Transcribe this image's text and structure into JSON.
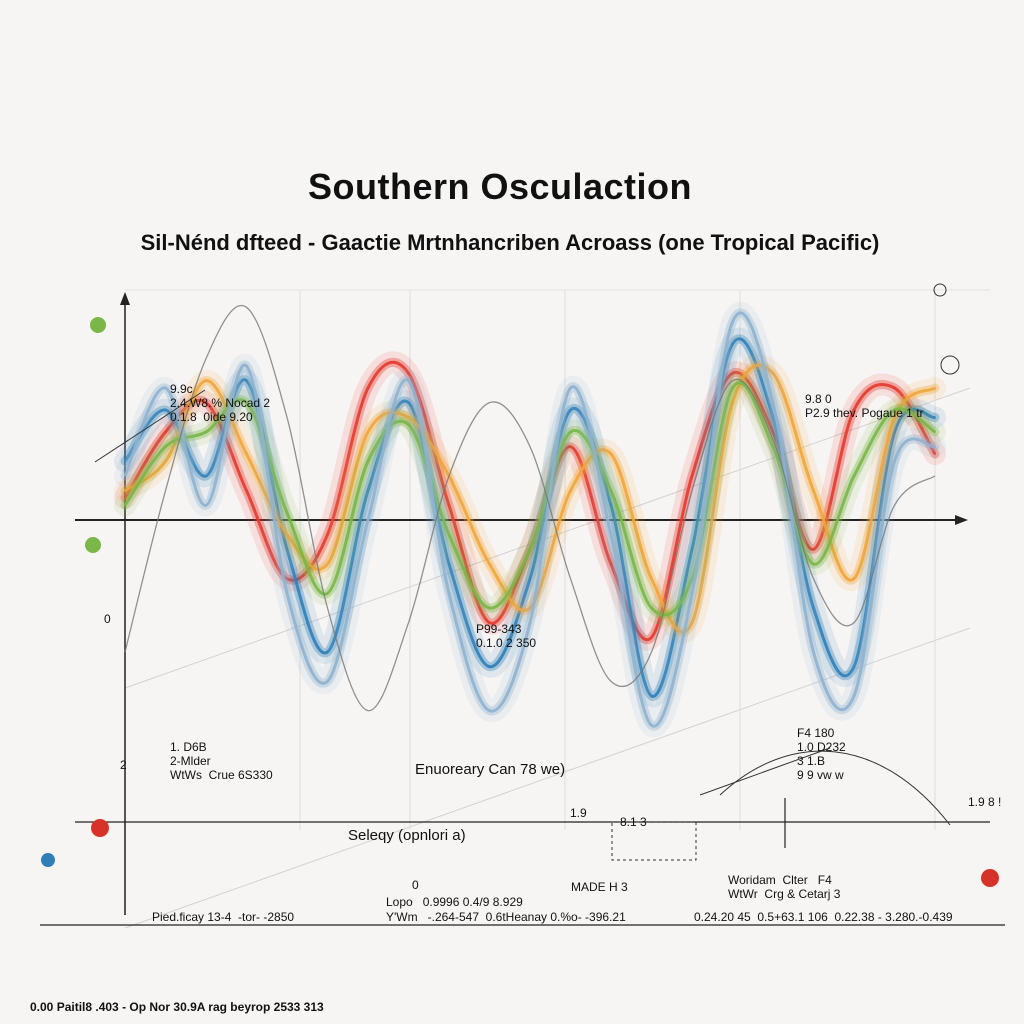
{
  "title": "Southern Osculaction",
  "subtitle": "Sil-Nénd dfteed - Gaactie Mrtnhancriben Acroass (one Tropical Pacific)",
  "annotations": {
    "top_left": "9.9c\n2.4.W8.% Nocad 2\n0.1.8  0ide 9.20",
    "top_right": "9.8 0\nP2.9 thev. Pogaue 1 tr",
    "center_low": "P99-343\n0.1.0 2 350",
    "lower_left": "1. D6B\n2-Mlder\nWtWs  Crue 6S330",
    "lower_center": "Enuoreary Can 78 we)",
    "lower_right": "F4 180\n1.0 D232\n3 1.B\n9 9 vw w",
    "legend_label": "Seleqy (opnlori a)",
    "inset_label": "8.1 3",
    "side_num_top_right": "1.9 8 !",
    "side_num_left": "1.9",
    "mid_tag": "MADE H 3",
    "lower_right_2": "Woridam  Clter   F4\nWtWr  Crg & Cetarj 3",
    "zero_mark": "0",
    "stat_a": "Lopo   0.9996 0.4/9 8.929",
    "stat_b": "Y'Wm   -.264-547  0.6tHeanay 0.%o- -396.21",
    "stat_c": "0.24.20 45  0.5+63.1 106  0.22.38 - 3.280.-0.439",
    "stat_left": "Pied.ficay 13-4  -tor- -2850",
    "footnote": "0.00  Paitil8 .403  - Op Nor 30.9A rag beyrop 2533 313",
    "left_tick_top": "2",
    "left_tick_mid": "0"
  },
  "chart_data": {
    "type": "line",
    "title": "Southern Osculaction",
    "subtitle": "Sil-Nénd dfteed - Gaactie Mrtnhancriben Acroass (one Tropical Pacific)",
    "xlabel": "",
    "ylabel": "",
    "x_range": [
      0,
      100
    ],
    "ylim": [
      -3,
      3
    ],
    "grid": true,
    "series": [
      {
        "color": "#e63a2e",
        "x": [
          0,
          5,
          10,
          15,
          20,
          25,
          30,
          35,
          40,
          45,
          50,
          55,
          60,
          65,
          70,
          75,
          80,
          85,
          90,
          95,
          100
        ],
        "values": [
          0.3,
          1.2,
          1.6,
          0.4,
          -0.8,
          -0.2,
          1.8,
          2.0,
          0.2,
          -1.4,
          -0.4,
          1.0,
          -0.6,
          -1.6,
          0.6,
          2.0,
          1.2,
          -0.4,
          1.5,
          1.8,
          0.9
        ]
      },
      {
        "color": "#2e7fb8",
        "x": [
          0,
          5,
          10,
          15,
          20,
          25,
          30,
          35,
          40,
          45,
          50,
          55,
          60,
          65,
          70,
          75,
          80,
          85,
          90,
          95,
          100
        ],
        "values": [
          0.8,
          1.5,
          0.6,
          1.9,
          -0.4,
          -1.8,
          0.4,
          1.6,
          -0.6,
          -2.0,
          -0.8,
          1.5,
          0.2,
          -2.4,
          -0.4,
          2.4,
          1.4,
          -1.2,
          -2.0,
          1.2,
          1.4
        ]
      },
      {
        "color": "#f2a53a",
        "x": [
          0,
          5,
          10,
          15,
          20,
          25,
          30,
          35,
          40,
          45,
          50,
          55,
          60,
          65,
          70,
          75,
          80,
          85,
          90,
          95,
          100
        ],
        "values": [
          0.4,
          0.8,
          1.9,
          0.9,
          -0.2,
          -0.6,
          1.2,
          1.4,
          0.6,
          -0.6,
          -1.2,
          0.4,
          0.9,
          -0.8,
          -1.4,
          1.6,
          2.0,
          0.4,
          -0.8,
          1.4,
          1.8
        ]
      },
      {
        "color": "#7ab648",
        "x": [
          0,
          5,
          10,
          15,
          20,
          25,
          30,
          35,
          40,
          45,
          50,
          55,
          60,
          65,
          70,
          75,
          80,
          85,
          90,
          95,
          100
        ],
        "values": [
          0.2,
          1.0,
          1.2,
          1.6,
          0.1,
          -1.0,
          0.8,
          1.3,
          -0.2,
          -1.2,
          -0.4,
          1.2,
          0.4,
          -1.2,
          -0.8,
          1.8,
          1.0,
          -0.6,
          0.6,
          1.5,
          1.2
        ]
      },
      {
        "color": "#8fb3cf",
        "x": [
          0,
          5,
          10,
          15,
          20,
          25,
          30,
          35,
          40,
          45,
          50,
          55,
          60,
          65,
          70,
          75,
          80,
          85,
          90,
          95,
          100
        ],
        "values": [
          0.6,
          1.8,
          0.2,
          2.1,
          -1.0,
          -2.2,
          0.0,
          1.9,
          -1.0,
          -2.6,
          -1.4,
          1.8,
          -0.2,
          -2.8,
          -1.0,
          2.7,
          1.6,
          -1.8,
          -2.4,
          0.8,
          1.0
        ]
      },
      {
        "color": "#777777",
        "x": [
          0,
          5,
          10,
          15,
          20,
          25,
          30,
          35,
          40,
          45,
          50,
          55,
          60,
          65,
          70,
          75,
          80,
          85,
          90,
          95,
          100
        ],
        "values": [
          -1.8,
          0.4,
          2.2,
          2.9,
          1.4,
          -1.2,
          -2.6,
          -1.4,
          0.6,
          1.6,
          1.0,
          -0.8,
          -2.2,
          -1.8,
          0.4,
          1.9,
          1.1,
          -0.8,
          -1.4,
          0.2,
          0.6
        ]
      }
    ]
  }
}
